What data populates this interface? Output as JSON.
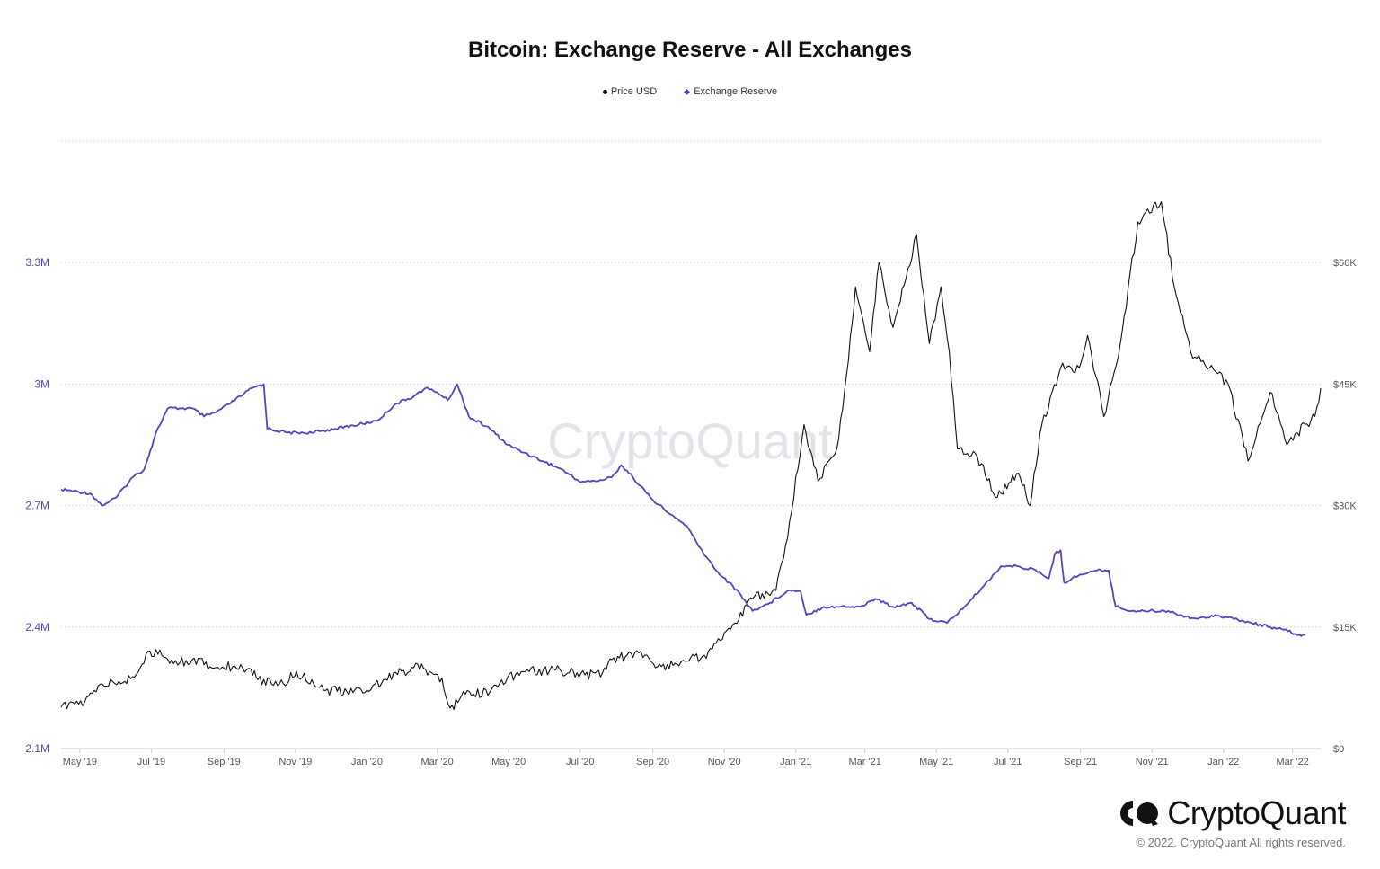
{
  "chart_data": {
    "type": "line",
    "title": "Bitcoin: Exchange Reserve - All Exchanges",
    "legend": [
      "Price USD",
      "Exchange Reserve"
    ],
    "legend_position": "top-center",
    "grid": true,
    "colors": {
      "price": "#111111",
      "reserve": "#5a3fc0"
    },
    "x_ticks": [
      "May '19",
      "Jul '19",
      "Sep '19",
      "Nov '19",
      "Jan '20",
      "Mar '20",
      "May '20",
      "Jul '20",
      "Sep '20",
      "Nov '20",
      "Jan '21",
      "Mar '21",
      "May '21",
      "Jul '21",
      "Sep '21",
      "Nov '21",
      "Jan '22",
      "Mar '22"
    ],
    "y_left": {
      "ticks": [
        "2.1M",
        "2.4M",
        "2.7M",
        "3M",
        "3.3M"
      ],
      "range": [
        2100000,
        3600000
      ]
    },
    "y_right": {
      "ticks": [
        "$0",
        "$15K",
        "$30K",
        "$45K",
        "$60K"
      ],
      "range": [
        0,
        75000
      ]
    },
    "x_range": [
      "2019-04-15",
      "2022-03-25"
    ],
    "series": [
      {
        "name": "Exchange Reserve",
        "axis": "left",
        "points": [
          [
            "2019-04-15",
            2740000
          ],
          [
            "2019-05-10",
            2730000
          ],
          [
            "2019-05-20",
            2700000
          ],
          [
            "2019-06-01",
            2720000
          ],
          [
            "2019-06-15",
            2770000
          ],
          [
            "2019-06-25",
            2790000
          ],
          [
            "2019-07-05",
            2880000
          ],
          [
            "2019-07-15",
            2940000
          ],
          [
            "2019-07-25",
            2940000
          ],
          [
            "2019-08-05",
            2940000
          ],
          [
            "2019-08-15",
            2920000
          ],
          [
            "2019-08-25",
            2930000
          ],
          [
            "2019-09-05",
            2950000
          ],
          [
            "2019-09-15",
            2970000
          ],
          [
            "2019-09-25",
            2990000
          ],
          [
            "2019-10-05",
            3000000
          ],
          [
            "2019-10-08",
            2890000
          ],
          [
            "2019-10-25",
            2880000
          ],
          [
            "2019-11-15",
            2880000
          ],
          [
            "2019-12-05",
            2890000
          ],
          [
            "2019-12-25",
            2900000
          ],
          [
            "2020-01-10",
            2910000
          ],
          [
            "2020-01-25",
            2950000
          ],
          [
            "2020-02-10",
            2970000
          ],
          [
            "2020-02-20",
            2990000
          ],
          [
            "2020-03-01",
            2980000
          ],
          [
            "2020-03-10",
            2960000
          ],
          [
            "2020-03-18",
            3000000
          ],
          [
            "2020-03-28",
            2920000
          ],
          [
            "2020-04-15",
            2890000
          ],
          [
            "2020-04-30",
            2850000
          ],
          [
            "2020-05-15",
            2830000
          ],
          [
            "2020-05-30",
            2810000
          ],
          [
            "2020-06-15",
            2790000
          ],
          [
            "2020-06-30",
            2760000
          ],
          [
            "2020-07-15",
            2760000
          ],
          [
            "2020-07-28",
            2770000
          ],
          [
            "2020-08-05",
            2800000
          ],
          [
            "2020-08-15",
            2770000
          ],
          [
            "2020-08-30",
            2720000
          ],
          [
            "2020-09-15",
            2680000
          ],
          [
            "2020-09-30",
            2650000
          ],
          [
            "2020-10-10",
            2600000
          ],
          [
            "2020-10-25",
            2540000
          ],
          [
            "2020-11-05",
            2510000
          ],
          [
            "2020-11-15",
            2480000
          ],
          [
            "2020-11-25",
            2440000
          ],
          [
            "2020-12-10",
            2460000
          ],
          [
            "2020-12-25",
            2490000
          ],
          [
            "2021-01-05",
            2490000
          ],
          [
            "2021-01-10",
            2430000
          ],
          [
            "2021-01-25",
            2450000
          ],
          [
            "2021-02-15",
            2450000
          ],
          [
            "2021-02-25",
            2450000
          ],
          [
            "2021-03-10",
            2470000
          ],
          [
            "2021-03-25",
            2450000
          ],
          [
            "2021-04-10",
            2460000
          ],
          [
            "2021-04-25",
            2420000
          ],
          [
            "2021-05-10",
            2410000
          ],
          [
            "2021-05-25",
            2450000
          ],
          [
            "2021-06-10",
            2500000
          ],
          [
            "2021-06-25",
            2550000
          ],
          [
            "2021-07-10",
            2550000
          ],
          [
            "2021-07-25",
            2540000
          ],
          [
            "2021-08-05",
            2520000
          ],
          [
            "2021-08-10",
            2580000
          ],
          [
            "2021-08-15",
            2590000
          ],
          [
            "2021-08-18",
            2510000
          ],
          [
            "2021-09-01",
            2530000
          ],
          [
            "2021-09-15",
            2540000
          ],
          [
            "2021-09-25",
            2540000
          ],
          [
            "2021-10-01",
            2450000
          ],
          [
            "2021-10-15",
            2440000
          ],
          [
            "2021-10-30",
            2440000
          ],
          [
            "2021-11-15",
            2440000
          ],
          [
            "2021-11-25",
            2430000
          ],
          [
            "2021-12-10",
            2420000
          ],
          [
            "2021-12-25",
            2430000
          ],
          [
            "2022-01-10",
            2420000
          ],
          [
            "2022-01-25",
            2410000
          ],
          [
            "2022-02-10",
            2400000
          ],
          [
            "2022-02-25",
            2390000
          ],
          [
            "2022-03-05",
            2380000
          ],
          [
            "2022-03-12",
            2380000
          ]
        ]
      },
      {
        "name": "Price USD",
        "axis": "right",
        "points": [
          [
            "2019-04-15",
            5100
          ],
          [
            "2019-05-05",
            5700
          ],
          [
            "2019-05-20",
            8000
          ],
          [
            "2019-06-05",
            8000
          ],
          [
            "2019-06-20",
            9500
          ],
          [
            "2019-06-28",
            12000
          ],
          [
            "2019-07-10",
            11500
          ],
          [
            "2019-07-20",
            10500
          ],
          [
            "2019-08-05",
            11000
          ],
          [
            "2019-08-25",
            10000
          ],
          [
            "2019-09-10",
            10200
          ],
          [
            "2019-09-24",
            9800
          ],
          [
            "2019-09-30",
            8500
          ],
          [
            "2019-10-25",
            8000
          ],
          [
            "2019-10-28",
            9400
          ],
          [
            "2019-11-15",
            8500
          ],
          [
            "2019-11-25",
            7200
          ],
          [
            "2019-12-15",
            7000
          ],
          [
            "2020-01-01",
            7200
          ],
          [
            "2020-01-15",
            8500
          ],
          [
            "2020-02-10",
            10000
          ],
          [
            "2020-02-20",
            9800
          ],
          [
            "2020-03-05",
            8700
          ],
          [
            "2020-03-12",
            5000
          ],
          [
            "2020-03-25",
            6700
          ],
          [
            "2020-04-15",
            7000
          ],
          [
            "2020-04-30",
            8800
          ],
          [
            "2020-05-15",
            9500
          ],
          [
            "2020-06-10",
            9700
          ],
          [
            "2020-07-05",
            9100
          ],
          [
            "2020-07-20",
            9300
          ],
          [
            "2020-07-28",
            11000
          ],
          [
            "2020-08-20",
            11800
          ],
          [
            "2020-09-05",
            10100
          ],
          [
            "2020-09-30",
            10800
          ],
          [
            "2020-10-15",
            11500
          ],
          [
            "2020-10-25",
            13000
          ],
          [
            "2020-11-10",
            15500
          ],
          [
            "2020-11-25",
            18500
          ],
          [
            "2020-12-15",
            19500
          ],
          [
            "2020-12-25",
            26000
          ],
          [
            "2021-01-08",
            40000
          ],
          [
            "2021-01-20",
            33000
          ],
          [
            "2021-02-05",
            37000
          ],
          [
            "2021-02-15",
            48000
          ],
          [
            "2021-02-21",
            57000
          ],
          [
            "2021-03-05",
            49000
          ],
          [
            "2021-03-13",
            60000
          ],
          [
            "2021-03-25",
            52000
          ],
          [
            "2021-04-05",
            58000
          ],
          [
            "2021-04-14",
            63500
          ],
          [
            "2021-04-25",
            50000
          ],
          [
            "2021-05-05",
            57000
          ],
          [
            "2021-05-12",
            49000
          ],
          [
            "2021-05-19",
            37000
          ],
          [
            "2021-06-05",
            36000
          ],
          [
            "2021-06-22",
            31000
          ],
          [
            "2021-07-10",
            34000
          ],
          [
            "2021-07-20",
            30000
          ],
          [
            "2021-07-30",
            40000
          ],
          [
            "2021-08-15",
            47000
          ],
          [
            "2021-08-31",
            47000
          ],
          [
            "2021-09-07",
            51000
          ],
          [
            "2021-09-21",
            41000
          ],
          [
            "2021-10-05",
            50000
          ],
          [
            "2021-10-20",
            65000
          ],
          [
            "2021-11-09",
            67500
          ],
          [
            "2021-11-20",
            57000
          ],
          [
            "2021-12-04",
            49000
          ],
          [
            "2021-12-20",
            47000
          ],
          [
            "2022-01-05",
            45000
          ],
          [
            "2022-01-22",
            35500
          ],
          [
            "2022-02-10",
            44000
          ],
          [
            "2022-02-24",
            37500
          ],
          [
            "2022-03-05",
            39000
          ],
          [
            "2022-03-20",
            41000
          ],
          [
            "2022-03-25",
            44500
          ]
        ]
      }
    ]
  },
  "watermark": "CryptoQuant",
  "brand": {
    "name": "CryptoQuant",
    "copyright": "© 2022. CryptoQuant All rights reserved."
  }
}
